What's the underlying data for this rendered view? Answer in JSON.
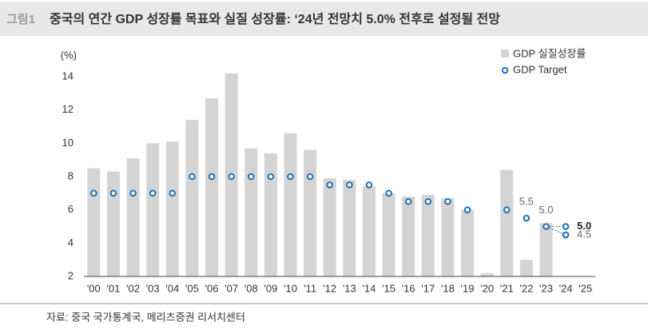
{
  "figure_label": "그림1",
  "chart_data": {
    "type": "bar",
    "title": "중국의 연간 GDP 성장률 목표와 실질 성장률: ‘24년 전망치 5.0% 전후로 설정될 전망",
    "y_unit": "(%)",
    "categories": [
      "'00",
      "'01",
      "'02",
      "'03",
      "'04",
      "'05",
      "'06",
      "'07",
      "'08",
      "'09",
      "'10",
      "'11",
      "'12",
      "'13",
      "'14",
      "'15",
      "'16",
      "'17",
      "'18",
      "'19",
      "'20",
      "'21",
      "'22",
      "'23",
      "'24",
      "'25"
    ],
    "series": [
      {
        "name": "GDP 실질성장률",
        "type": "bar",
        "color": "#d4d4d4",
        "values": [
          8.5,
          8.3,
          9.1,
          10.0,
          10.1,
          11.4,
          12.7,
          14.2,
          9.7,
          9.4,
          10.6,
          9.6,
          7.9,
          7.8,
          7.4,
          7.0,
          6.8,
          6.9,
          6.7,
          6.0,
          2.2,
          8.4,
          3.0,
          5.2,
          null,
          null
        ]
      },
      {
        "name": "GDP Target",
        "type": "marker",
        "color": "#1f6fb5",
        "values": [
          7,
          7,
          7,
          7,
          7,
          8,
          8,
          8,
          8,
          8,
          8,
          8,
          7.5,
          7.5,
          7.5,
          7,
          6.5,
          6.5,
          6.5,
          6,
          null,
          6,
          5.5,
          5,
          5,
          null
        ],
        "value_labels": [
          null,
          null,
          null,
          null,
          null,
          null,
          null,
          null,
          null,
          null,
          null,
          null,
          null,
          null,
          null,
          null,
          null,
          null,
          null,
          null,
          null,
          null,
          "5.5",
          "5.0",
          "5.0",
          null
        ]
      },
      {
        "type": "marker",
        "color": "#1f6fb5",
        "values": [
          null,
          null,
          null,
          null,
          null,
          null,
          null,
          null,
          null,
          null,
          null,
          null,
          null,
          null,
          null,
          null,
          null,
          null,
          null,
          null,
          null,
          null,
          null,
          null,
          4.5,
          null
        ],
        "value_labels": [
          null,
          null,
          null,
          null,
          null,
          null,
          null,
          null,
          null,
          null,
          null,
          null,
          null,
          null,
          null,
          null,
          null,
          null,
          null,
          null,
          null,
          null,
          null,
          null,
          "4.5",
          null
        ]
      }
    ],
    "ylim": [
      2,
      14
    ],
    "yticks": [
      2,
      4,
      6,
      8,
      10,
      12,
      14
    ],
    "source": "자료: 중국 국가통계국, 메리츠증권 리서치센터"
  }
}
